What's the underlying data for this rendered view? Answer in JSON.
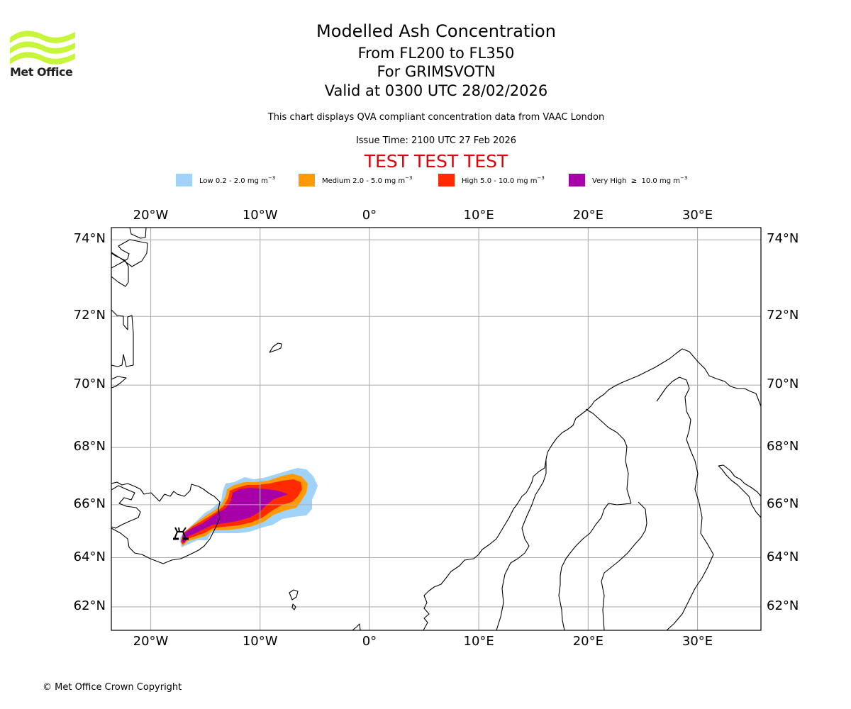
{
  "header": {
    "logo_text": "Met Office",
    "title": "Modelled Ash Concentration",
    "subtitle_levels": "From FL200 to FL350",
    "subtitle_volcano": "For GRIMSVOTN",
    "subtitle_valid": "Valid at 0300 UTC 28/02/2026",
    "description": "This chart displays QVA compliant concentration data from VAAC London",
    "issue_time": "Issue Time: 2100 UTC 27 Feb 2026",
    "test_banner": "TEST TEST TEST"
  },
  "legend": [
    {
      "label": "Low 0.2 - 2.0 mg m",
      "unit_exp": "−3",
      "color": "#a0d2fa"
    },
    {
      "label": "Medium 2.0 - 5.0 mg m",
      "unit_exp": "−3",
      "color": "#ff9a00"
    },
    {
      "label": "High 5.0 - 10.0 mg m",
      "unit_exp": "−3",
      "color": "#ff2a00"
    },
    {
      "label": "Very High  ≥  10.0 mg m",
      "unit_exp": "−3",
      "color": "#a800a8"
    }
  ],
  "map": {
    "type": "map",
    "projection": "mercator",
    "extent": {
      "lon": [
        -23.6,
        35.8
      ],
      "lat": [
        61.0,
        74.3
      ]
    },
    "lon_ticks": [
      "20°W",
      "10°W",
      "0°",
      "10°E",
      "20°E",
      "30°E"
    ],
    "lon_values": [
      -20,
      -10,
      0,
      10,
      20,
      30
    ],
    "lat_ticks": [
      "74°N",
      "72°N",
      "70°N",
      "68°N",
      "66°N",
      "64°N",
      "62°N"
    ],
    "lat_values": [
      74,
      72,
      70,
      68,
      66,
      64,
      62
    ],
    "gridlines": true,
    "volcano": {
      "name": "GRIMSVOTN",
      "lon": -17.3,
      "lat": 64.4,
      "icon": "volcano-symbol-icon"
    },
    "plume": {
      "direction": "east-northeast",
      "levels": [
        "low",
        "medium",
        "high",
        "very_high"
      ],
      "approx_extent": {
        "lon": [
          -17.4,
          -4.8
        ],
        "lat": [
          64.2,
          66.8
        ]
      }
    }
  },
  "footer": {
    "copyright": "© Met Office Crown Copyright"
  }
}
